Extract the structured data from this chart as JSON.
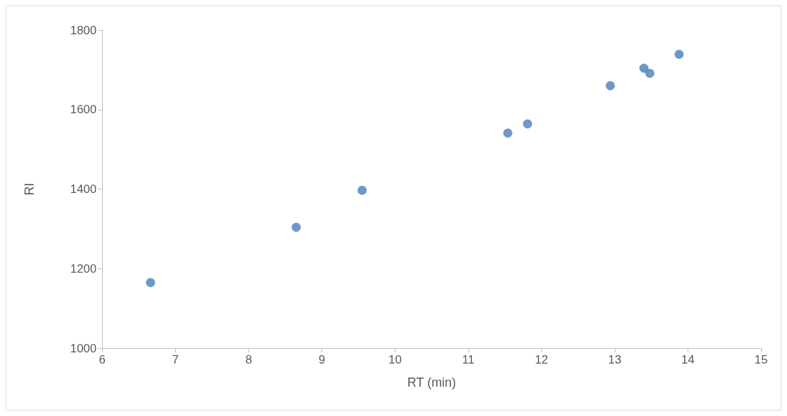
{
  "chart_data": {
    "type": "scatter",
    "xlabel": "RT (min)",
    "ylabel": "RI",
    "x": [
      6.66,
      8.65,
      9.55,
      11.54,
      11.81,
      12.94,
      13.4,
      13.48,
      13.88
    ],
    "values": [
      1165,
      1304,
      1397,
      1541,
      1564,
      1660,
      1704,
      1691,
      1739
    ],
    "color": "#4a7ebb",
    "xlim": [
      6,
      15
    ],
    "xticks": [
      6,
      7,
      8,
      9,
      10,
      11,
      12,
      13,
      14,
      15
    ],
    "ylim": [
      1000,
      1800
    ],
    "yticks": [
      1000,
      1200,
      1400,
      1600,
      1800
    ],
    "grid": false,
    "marker": "circle"
  }
}
